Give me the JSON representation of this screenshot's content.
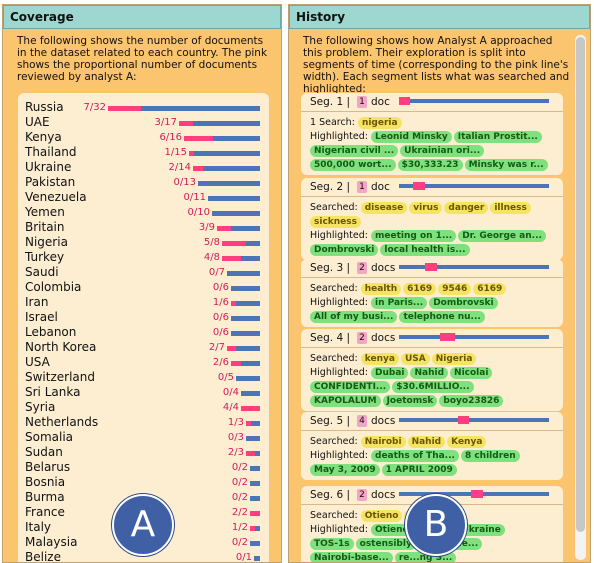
{
  "coverage": {
    "title": "Coverage",
    "intro": "The following shows the number of documents in the dataset related to each country. The pink shows the proportional number of documents reviewed by analyst A:",
    "rows": [
      {
        "country": "Russia",
        "frac": "7/32",
        "read": 7,
        "total": 32
      },
      {
        "country": "UAE",
        "frac": "3/17",
        "read": 3,
        "total": 17
      },
      {
        "country": "Kenya",
        "frac": "6/16",
        "read": 6,
        "total": 16
      },
      {
        "country": "Thailand",
        "frac": "1/15",
        "read": 1,
        "total": 15
      },
      {
        "country": "Ukraine",
        "frac": "2/14",
        "read": 2,
        "total": 14
      },
      {
        "country": "Pakistan",
        "frac": "0/13",
        "read": 0,
        "total": 13
      },
      {
        "country": "Venezuela",
        "frac": "0/11",
        "read": 0,
        "total": 11
      },
      {
        "country": "Yemen",
        "frac": "0/10",
        "read": 0,
        "total": 10
      },
      {
        "country": "Britain",
        "frac": "3/9",
        "read": 3,
        "total": 9
      },
      {
        "country": "Nigeria",
        "frac": "5/8",
        "read": 5,
        "total": 8
      },
      {
        "country": "Turkey",
        "frac": "4/8",
        "read": 4,
        "total": 8
      },
      {
        "country": "Saudi",
        "frac": "0/7",
        "read": 0,
        "total": 7
      },
      {
        "country": "Colombia",
        "frac": "0/6",
        "read": 0,
        "total": 6
      },
      {
        "country": "Iran",
        "frac": "1/6",
        "read": 1,
        "total": 6
      },
      {
        "country": "Israel",
        "frac": "0/6",
        "read": 0,
        "total": 6
      },
      {
        "country": "Lebanon",
        "frac": "0/6",
        "read": 0,
        "total": 6
      },
      {
        "country": "North Korea",
        "frac": "2/7",
        "read": 2,
        "total": 7
      },
      {
        "country": "USA",
        "frac": "2/6",
        "read": 2,
        "total": 6
      },
      {
        "country": "Switzerland",
        "frac": "0/5",
        "read": 0,
        "total": 5
      },
      {
        "country": "Sri Lanka",
        "frac": "0/4",
        "read": 0,
        "total": 4
      },
      {
        "country": "Syria",
        "frac": "4/4",
        "read": 4,
        "total": 4
      },
      {
        "country": "Netherlands",
        "frac": "1/3",
        "read": 1,
        "total": 3
      },
      {
        "country": "Somalia",
        "frac": "0/3",
        "read": 0,
        "total": 3
      },
      {
        "country": "Sudan",
        "frac": "2/3",
        "read": 2,
        "total": 3
      },
      {
        "country": "Belarus",
        "frac": "0/2",
        "read": 0,
        "total": 2
      },
      {
        "country": "Bosnia",
        "frac": "0/2",
        "read": 0,
        "total": 2
      },
      {
        "country": "Burma",
        "frac": "0/2",
        "read": 0,
        "total": 2
      },
      {
        "country": "France",
        "frac": "2/2",
        "read": 2,
        "total": 2
      },
      {
        "country": "Italy",
        "frac": "1/2",
        "read": 1,
        "total": 2
      },
      {
        "country": "Malaysia",
        "frac": "0/2",
        "read": 0,
        "total": 2
      },
      {
        "country": "Belize",
        "frac": "0/1",
        "read": 0,
        "total": 1
      }
    ]
  },
  "history": {
    "title": "History",
    "intro": "The following shows how Analyst A approached this problem. Their exploration is split into segments of time (corresponding to the pink line's width). Each segment lists what was searched and highlighted:",
    "segments": [
      {
        "label": "Seg. 1 |",
        "count": "1",
        "unit": "doc",
        "start": 0.0,
        "end": 0.07,
        "lines": [
          [
            "text",
            "1 Search: "
          ],
          [
            "s",
            "nigeria"
          ]
        ],
        "lines2": [
          [
            [
              "text",
              "Highlighted: "
            ],
            [
              "h",
              "Leonid Minsky"
            ],
            [
              "h",
              "Italian Prostit..."
            ]
          ],
          [
            [
              "h",
              "Nigerian civil ..."
            ],
            [
              "h",
              "Ukrainian ori..."
            ]
          ],
          [
            [
              "h",
              "500,000 wort..."
            ],
            [
              "h",
              "$30,333.23"
            ],
            [
              "h",
              "Minsky was r..."
            ]
          ]
        ]
      },
      {
        "label": "Seg. 2 |",
        "count": "1",
        "unit": "doc",
        "start": 0.09,
        "end": 0.17,
        "lines2": [
          [
            [
              "text",
              "Searched: "
            ],
            [
              "s",
              "disease"
            ],
            [
              "s",
              "virus"
            ],
            [
              "s",
              "danger"
            ],
            [
              "s",
              "illness"
            ]
          ],
          [
            [
              "s",
              "sickness"
            ]
          ],
          [
            [
              "text",
              "Highlighted: "
            ],
            [
              "h",
              "meeting on 1..."
            ],
            [
              "h",
              "Dr. George an..."
            ]
          ],
          [
            [
              "h",
              "Dombrovski"
            ],
            [
              "h",
              "local health is..."
            ]
          ]
        ]
      },
      {
        "label": "Seg. 3 |",
        "count": "2",
        "unit": "docs",
        "start": 0.17,
        "end": 0.25,
        "lines2": [
          [
            [
              "text",
              "Searched: "
            ],
            [
              "s",
              "health"
            ],
            [
              "s",
              "6169"
            ],
            [
              "s",
              "9546"
            ],
            [
              "s",
              "6169"
            ]
          ],
          [
            [
              "text",
              "Highlighted: "
            ],
            [
              "h",
              "in Paris..."
            ],
            [
              "h",
              "Dombrovski"
            ]
          ],
          [
            [
              "h",
              "All of my busi..."
            ],
            [
              "h",
              "telephone nu..."
            ]
          ]
        ]
      },
      {
        "label": "Seg. 4 |",
        "count": "2",
        "unit": "docs",
        "start": 0.27,
        "end": 0.37,
        "lines2": [
          [
            [
              "text",
              "Searched: "
            ],
            [
              "s",
              "kenya"
            ],
            [
              "s",
              "USA"
            ],
            [
              "s",
              "Nigeria"
            ]
          ],
          [
            [
              "text",
              "Highlighted: "
            ],
            [
              "h",
              "Dubai"
            ],
            [
              "h",
              "Nahid"
            ],
            [
              "h",
              "Nicolai"
            ]
          ],
          [
            [
              "h",
              "CONFIDENTI..."
            ],
            [
              "h",
              "$30.6MILLIO..."
            ]
          ],
          [
            [
              "h",
              "KAPOLALUM"
            ],
            [
              "h",
              "Joetomsk"
            ],
            [
              "h",
              "boyo23826"
            ]
          ]
        ]
      },
      {
        "label": "Seg. 5 |",
        "count": "4",
        "unit": "docs",
        "start": 0.39,
        "end": 0.46,
        "lines2": [
          [
            [
              "text",
              "Searched: "
            ],
            [
              "s",
              "Nairobi"
            ],
            [
              "s",
              "Nahid"
            ],
            [
              "s",
              "Kenya"
            ]
          ],
          [
            [
              "text",
              "Highlighted: "
            ],
            [
              "h",
              "deaths of Tha..."
            ],
            [
              "h",
              "8 children"
            ]
          ],
          [
            [
              "h",
              "May 3, 2009"
            ],
            [
              "h",
              "1 APRIL 2009"
            ]
          ]
        ]
      },
      {
        "label": "Seg. 6 |",
        "count": "2",
        "unit": "docs",
        "start": 0.48,
        "end": 0.56,
        "lines2": [
          [
            [
              "text",
              "Searched: "
            ],
            [
              "s",
              "Otieno"
            ],
            [
              "s",
              "Otieno"
            ]
          ],
          [
            [
              "text",
              "Highlighted: "
            ],
            [
              "h",
              "Otieno"
            ],
            [
              "h",
              "al fo..."
            ],
            [
              "h",
              "Ukraine"
            ]
          ],
          [
            [
              "h",
              "TOS-1s"
            ],
            [
              "h",
              "ostensibly"
            ],
            [
              "h",
              "e shipme..."
            ]
          ],
          [
            [
              "h",
              "Nairobi-base..."
            ],
            [
              "h",
              "re...ng S..."
            ]
          ]
        ]
      }
    ]
  },
  "badges": {
    "a": "A",
    "b": "B"
  }
}
